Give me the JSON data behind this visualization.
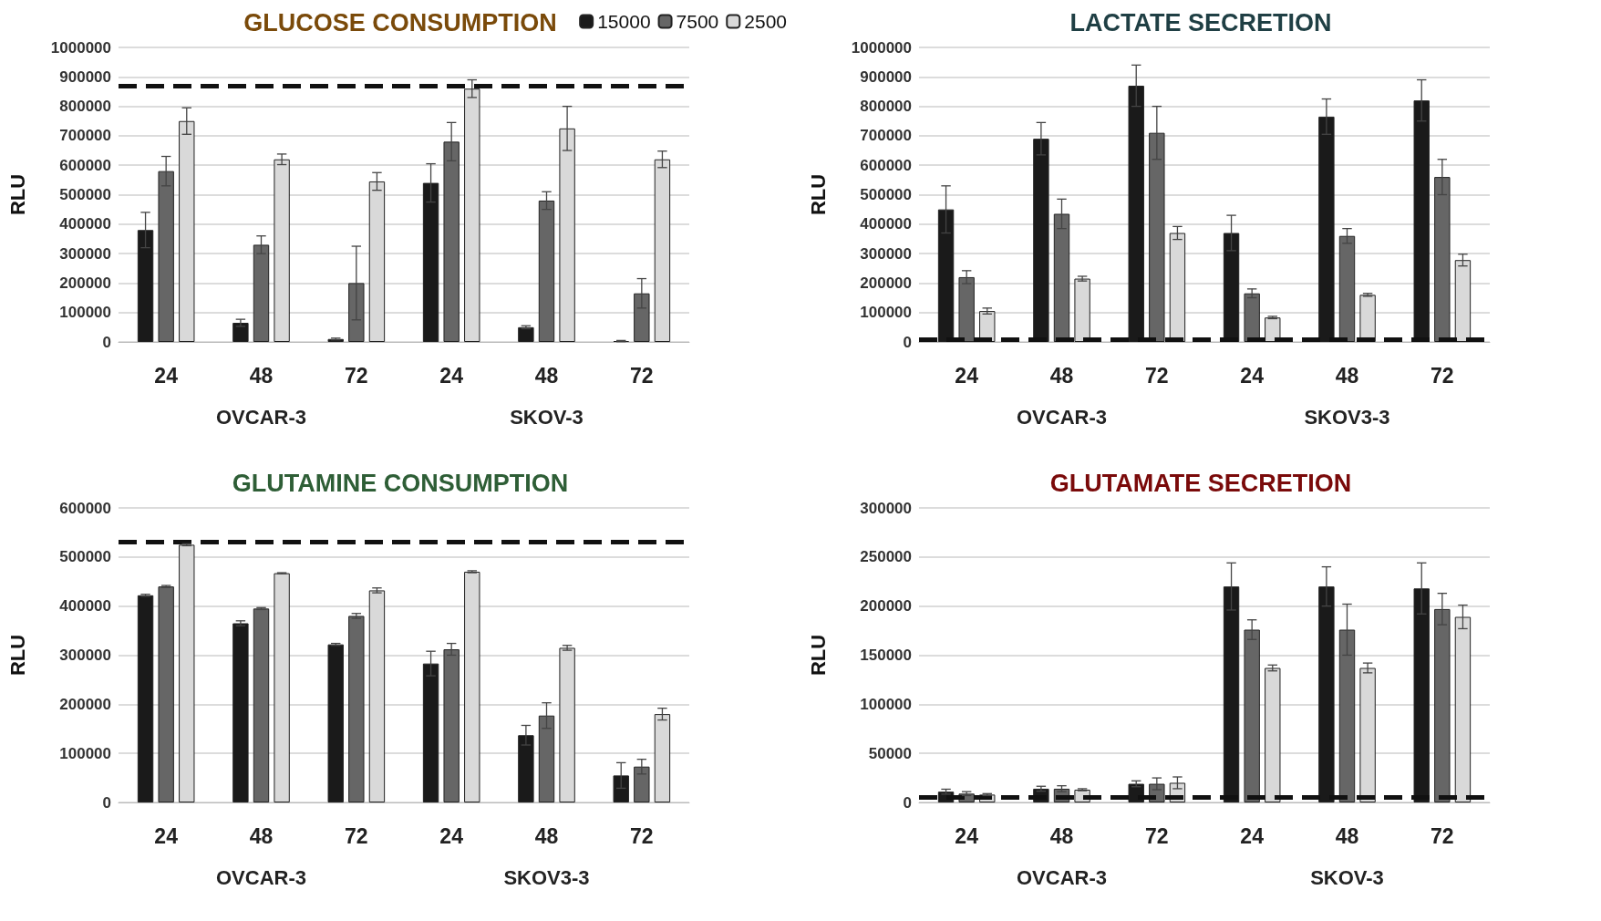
{
  "chart_data": [
    {
      "type": "bar",
      "title": "GLUCOSE CONSUMPTION",
      "ylabel": "RLU",
      "categories": [
        "24",
        "48",
        "72",
        "24",
        "48",
        "72"
      ],
      "annotations": [
        "OVCAR-3",
        "SKOV-3"
      ],
      "series": [
        {
          "name": "15000",
          "color": "#1a1a1a",
          "values": [
            380000,
            65000,
            10000,
            540000,
            50000,
            3000
          ],
          "errors": [
            60000,
            12000,
            3000,
            65000,
            5000,
            2000
          ]
        },
        {
          "name": "7500",
          "color": "#666666",
          "values": [
            580000,
            330000,
            200000,
            680000,
            480000,
            165000
          ],
          "errors": [
            50000,
            30000,
            125000,
            65000,
            30000,
            50000
          ]
        },
        {
          "name": "2500",
          "color": "#d9d9d9",
          "values": [
            750000,
            620000,
            545000,
            860000,
            725000,
            620000
          ],
          "errors": [
            45000,
            18000,
            30000,
            30000,
            75000,
            28000
          ]
        }
      ],
      "ylim": [
        0,
        1000000
      ],
      "yticks": [
        0,
        100000,
        200000,
        300000,
        400000,
        500000,
        600000,
        700000,
        800000,
        900000,
        1000000
      ],
      "grid": "y",
      "legend": "top right",
      "ref_lines": [
        {
          "axis": "y",
          "value": 870000,
          "color": "#111111",
          "line_style": "dashed"
        }
      ]
    },
    {
      "type": "bar",
      "title": "LACTATE SECRETION",
      "ylabel": "RLU",
      "categories": [
        "24",
        "48",
        "72",
        "24",
        "48",
        "72"
      ],
      "annotations": [
        "OVCAR-3",
        "SKOV3-3"
      ],
      "series": [
        {
          "color": "#1a1a1a",
          "values": [
            450000,
            690000,
            870000,
            370000,
            765000,
            820000
          ],
          "errors": [
            80000,
            55000,
            70000,
            60000,
            60000,
            70000
          ]
        },
        {
          "color": "#666666",
          "values": [
            220000,
            435000,
            710000,
            165000,
            360000,
            560000
          ],
          "errors": [
            22000,
            50000,
            90000,
            15000,
            25000,
            60000
          ]
        },
        {
          "color": "#d9d9d9",
          "values": [
            105000,
            215000,
            370000,
            83000,
            160000,
            278000
          ],
          "errors": [
            10000,
            8000,
            22000,
            4000,
            5000,
            20000
          ]
        }
      ],
      "ylim": [
        0,
        1000000
      ],
      "yticks": [
        0,
        100000,
        200000,
        300000,
        400000,
        500000,
        600000,
        700000,
        800000,
        900000,
        1000000
      ],
      "grid": "y",
      "ref_lines": [
        {
          "axis": "y",
          "value": 8000,
          "color": "#111111",
          "line_style": "dashed"
        }
      ]
    },
    {
      "type": "bar",
      "title": "GLUTAMINE CONSUMPTION",
      "ylabel": "RLU",
      "categories": [
        "24",
        "48",
        "72",
        "24",
        "48",
        "72"
      ],
      "annotations": [
        "OVCAR-3",
        "SKOV3-3"
      ],
      "series": [
        {
          "color": "#1a1a1a",
          "values": [
            422000,
            365000,
            322000,
            283000,
            137000,
            55000
          ],
          "errors": [
            2000,
            5000,
            2000,
            25000,
            20000,
            26000
          ]
        },
        {
          "color": "#666666",
          "values": [
            440000,
            395000,
            380000,
            312000,
            177000,
            73000
          ],
          "errors": [
            2000,
            2000,
            5000,
            12000,
            26000,
            15000
          ]
        },
        {
          "color": "#d9d9d9",
          "values": [
            525000,
            467000,
            432000,
            470000,
            315000,
            180000
          ],
          "errors": [
            2000,
            1000,
            5000,
            2000,
            5000,
            12000
          ]
        }
      ],
      "ylim": [
        0,
        600000
      ],
      "yticks": [
        0,
        100000,
        200000,
        300000,
        400000,
        500000,
        600000
      ],
      "grid": "y",
      "ref_lines": [
        {
          "axis": "y",
          "value": 530000,
          "color": "#111111",
          "line_style": "dashed"
        }
      ]
    },
    {
      "type": "bar",
      "title": "GLUTAMATE SECRETION",
      "ylabel": "RLU",
      "categories": [
        "24",
        "48",
        "72",
        "24",
        "48",
        "72"
      ],
      "annotations": [
        "OVCAR-3",
        "SKOV-3"
      ],
      "series": [
        {
          "color": "#1a1a1a",
          "values": [
            11000,
            14000,
            19000,
            220000,
            220000,
            218000
          ],
          "errors": [
            2500,
            2500,
            3000,
            24000,
            20000,
            26000
          ]
        },
        {
          "color": "#666666",
          "values": [
            9000,
            14000,
            19000,
            176000,
            176000,
            197000
          ],
          "errors": [
            2000,
            3000,
            6000,
            10000,
            26000,
            16000
          ]
        },
        {
          "color": "#d9d9d9",
          "values": [
            8000,
            13000,
            20000,
            137000,
            137000,
            189000
          ],
          "errors": [
            1000,
            1000,
            6000,
            3000,
            5000,
            12000
          ]
        }
      ],
      "ylim": [
        0,
        300000
      ],
      "yticks": [
        0,
        50000,
        100000,
        150000,
        200000,
        250000,
        300000
      ],
      "grid": "y",
      "ref_lines": [
        {
          "axis": "y",
          "value": 5000,
          "color": "#111111",
          "line_style": "dashed"
        }
      ]
    }
  ]
}
